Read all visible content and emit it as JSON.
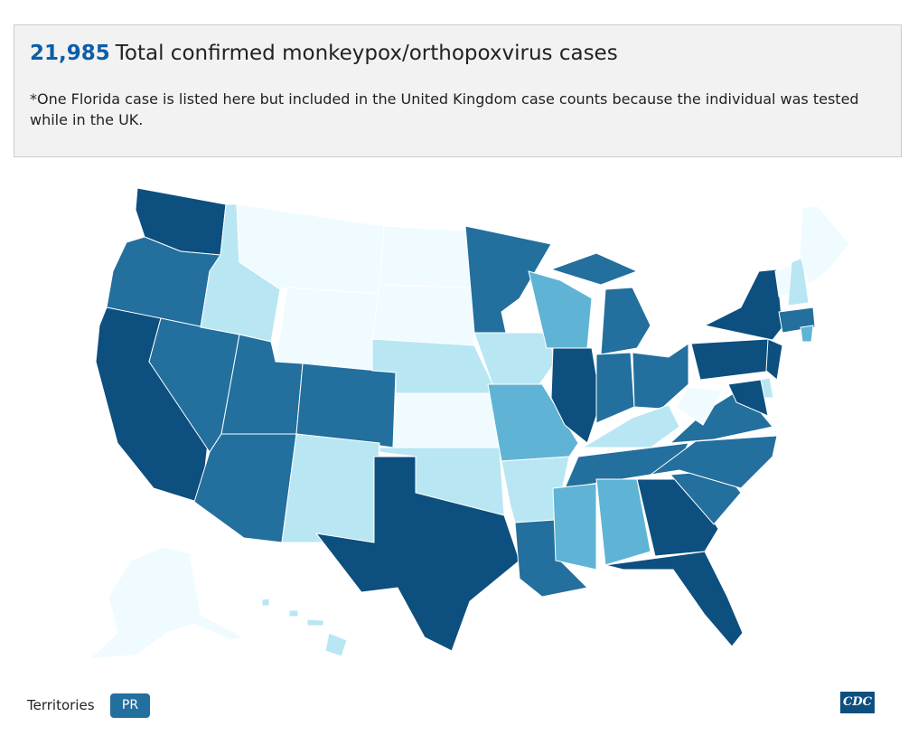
{
  "header": {
    "count": "21,985",
    "title": "Total confirmed monkeypox/orthopoxvirus cases",
    "note": "*One Florida case is listed here but included in the United Kingdom case counts because the individual was tested while in the UK."
  },
  "territories": {
    "label": "Territories",
    "buttons": [
      "PR"
    ]
  },
  "logo": "CDC"
}
